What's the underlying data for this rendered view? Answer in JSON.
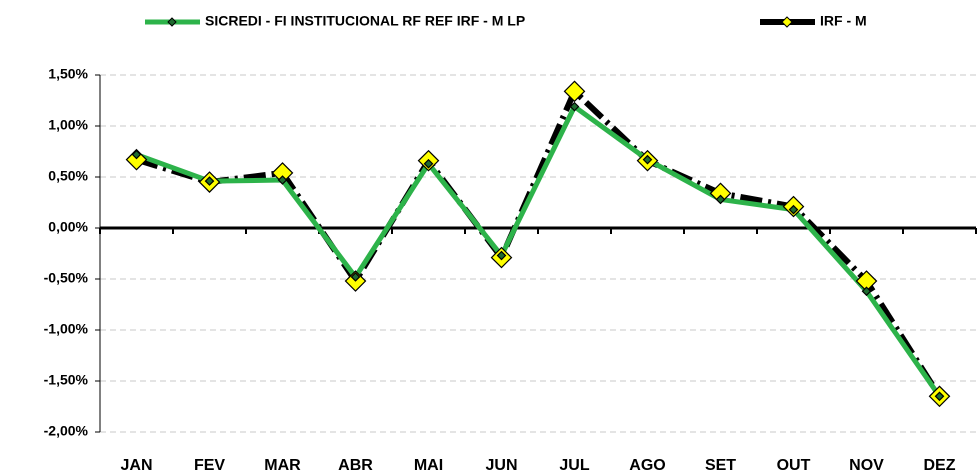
{
  "chart_data": {
    "type": "line",
    "categories": [
      "JAN",
      "FEV",
      "MAR",
      "ABR",
      "MAI",
      "JUN",
      "JUL",
      "AGO",
      "SET",
      "OUT",
      "NOV",
      "DEZ"
    ],
    "series": [
      {
        "name": "SICREDI - FI INSTITUCIONAL RF REF IRF - M LP",
        "color": "#2db34a",
        "marker_color": "#1f6b30",
        "line_style": "solid",
        "values": [
          0.72,
          0.46,
          0.47,
          -0.48,
          0.63,
          -0.27,
          1.19,
          0.67,
          0.28,
          0.18,
          -0.62,
          -1.65
        ]
      },
      {
        "name": "IRF - M",
        "color": "#000000",
        "marker_color": "#ffff00",
        "line_style": "dashed",
        "values": [
          0.67,
          0.45,
          0.54,
          -0.52,
          0.66,
          -0.29,
          1.34,
          0.66,
          0.34,
          0.21,
          -0.52,
          -1.65
        ]
      }
    ],
    "ylim": [
      -2.0,
      1.5
    ],
    "yticks": [
      {
        "value": -2.0,
        "label": "-2,00%"
      },
      {
        "value": -1.5,
        "label": "-1,50%"
      },
      {
        "value": -1.0,
        "label": "-1,00%"
      },
      {
        "value": -0.5,
        "label": "-0,50%"
      },
      {
        "value": 0,
        "label": "0,00%"
      },
      {
        "value": 0.5,
        "label": "0,50%"
      },
      {
        "value": 1.0,
        "label": "1,00%"
      },
      {
        "value": 1.5,
        "label": "1,50%"
      }
    ],
    "grid": true,
    "legend": "top"
  }
}
